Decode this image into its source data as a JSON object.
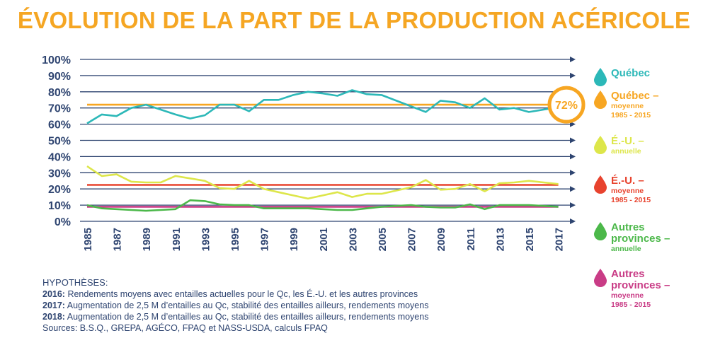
{
  "title": "ÉVOLUTION DE LA PART DE LA PRODUCTION ACÉRICOLE",
  "badge_label": "72%",
  "chart_data": {
    "type": "line",
    "title": "ÉVOLUTION DE LA PART DE LA PRODUCTION ACÉRICOLE",
    "xlabel": "",
    "ylabel": "",
    "ylim": [
      0,
      100
    ],
    "y_ticks": [
      "100%",
      "90%",
      "80%",
      "70%",
      "60%",
      "50%",
      "40%",
      "30%",
      "20%",
      "10%",
      "0%"
    ],
    "x_ticks": [
      "1985",
      "1987",
      "1989",
      "1991",
      "1993",
      "1995",
      "1997",
      "1999",
      "2001",
      "2003",
      "2005",
      "2007",
      "2009",
      "2011",
      "2013",
      "2015",
      "2017"
    ],
    "x": [
      1985,
      1986,
      1987,
      1988,
      1989,
      1990,
      1991,
      1992,
      1993,
      1994,
      1995,
      1996,
      1997,
      1998,
      1999,
      2000,
      2001,
      2002,
      2003,
      2004,
      2005,
      2006,
      2007,
      2008,
      2009,
      2010,
      2011,
      2012,
      2013,
      2014,
      2015,
      2016,
      2017
    ],
    "grid": true,
    "legend_position": "right",
    "series": [
      {
        "name": "Québec",
        "color": "#2cb8b8",
        "values": [
          60.5,
          66,
          65,
          70,
          72,
          69,
          66,
          63.5,
          65.5,
          72,
          72,
          68,
          75,
          75,
          78,
          80,
          79,
          77.5,
          81,
          78.5,
          78,
          74.5,
          71,
          67.5,
          74.5,
          73.5,
          70,
          76,
          69,
          70,
          67.5,
          69,
          70.5
        ]
      },
      {
        "name": "Québec – moyenne 1985 - 2015",
        "color": "#f7a622",
        "values": [
          72,
          72,
          72,
          72,
          72,
          72,
          72,
          72,
          72,
          72,
          72,
          72,
          72,
          72,
          72,
          72,
          72,
          72,
          72,
          72,
          72,
          72,
          72,
          72,
          72,
          72,
          72,
          72,
          72,
          72,
          72,
          72,
          72
        ]
      },
      {
        "name": "É.-U. – annuelle",
        "color": "#dde64a",
        "values": [
          34,
          28,
          29,
          24.5,
          24,
          24,
          28,
          26.5,
          25,
          20.5,
          20,
          25,
          20,
          18,
          16,
          14,
          16,
          18,
          15,
          17,
          17,
          19,
          21,
          25.5,
          19.5,
          20,
          23,
          18.5,
          23.5,
          24,
          25,
          24,
          23
        ]
      },
      {
        "name": "É.-U. – moyenne 1985 - 2015",
        "color": "#e8432e",
        "values": [
          22.5,
          22.5,
          22.5,
          22.5,
          22.5,
          22.5,
          22.5,
          22.5,
          22.5,
          22.5,
          22.5,
          22.5,
          22.5,
          22.5,
          22.5,
          22.5,
          22.5,
          22.5,
          22.5,
          22.5,
          22.5,
          22.5,
          22.5,
          22.5,
          22.5,
          22.5,
          22.5,
          22.5,
          22.5,
          22.5,
          22.5,
          22.5,
          22.5
        ]
      },
      {
        "name": "Autres provinces – annuelle",
        "color": "#4cb84a",
        "values": [
          10,
          8,
          7.5,
          7,
          6.5,
          7,
          7.5,
          13,
          12.5,
          10.5,
          10,
          10,
          8,
          8,
          8,
          8,
          7.5,
          7,
          7,
          8,
          9,
          9.5,
          10,
          9,
          8.5,
          8.5,
          10.5,
          7.5,
          10,
          10,
          10,
          9.5,
          9
        ]
      },
      {
        "name": "Autres provinces – moyenne 1985 - 2015",
        "color": "#c93c86",
        "values": [
          9,
          9,
          9,
          9,
          9,
          9,
          9,
          9,
          9,
          9,
          9,
          9,
          9,
          9,
          9,
          9,
          9,
          9,
          9,
          9,
          9,
          9,
          9,
          9,
          9,
          9,
          9,
          9,
          9,
          9,
          9,
          9,
          9
        ]
      }
    ]
  },
  "legend": [
    {
      "name": "Québec",
      "sub": [],
      "color": "#2cb8b8",
      "sub_color": "#2cb8b8"
    },
    {
      "name": "Québec –",
      "sub": [
        "moyenne",
        "1985 - 2015"
      ],
      "color": "#f7a622",
      "sub_color": "#f7a622"
    },
    {
      "name": "É.-U. –",
      "sub": [
        "annuelle"
      ],
      "color": "#dde64a",
      "sub_color": "#dde64a"
    },
    {
      "name": "É.-U. –",
      "sub": [
        "moyenne",
        "1985 - 2015"
      ],
      "color": "#e8432e",
      "sub_color": "#e8432e"
    },
    {
      "name": "Autres",
      "name2": "provinces –",
      "sub": [
        "annuelle"
      ],
      "color": "#4cb84a",
      "sub_color": "#4cb84a"
    },
    {
      "name": "Autres",
      "name2": "provinces –",
      "sub": [
        "moyenne",
        "1985 - 2015"
      ],
      "color": "#c93c86",
      "sub_color": "#c93c86"
    }
  ],
  "notes": {
    "heading": "HYPOTHÈSES:",
    "lines": [
      {
        "label": "2016:",
        "text": " Rendements moyens avec entailles actuelles pour le Qc, les É.-U. et les autres provinces"
      },
      {
        "label": "2017:",
        "text": " Augmentation de 2,5 M d’entailles au Qc, stabilité des entailles ailleurs, rendements moyens"
      },
      {
        "label": "2018:",
        "text": " Augmentation de 2,5 M d’entailles au Qc, stabilité des entailles ailleurs, rendements moyens"
      }
    ],
    "sources": "Sources: B.S.Q., GREPA, AGÉCO, FPAQ et NASS-USDA, calculs FPAQ"
  },
  "colors": {
    "title": "#f5a623",
    "axis": "#2e4470",
    "badge": "#f7a622"
  }
}
